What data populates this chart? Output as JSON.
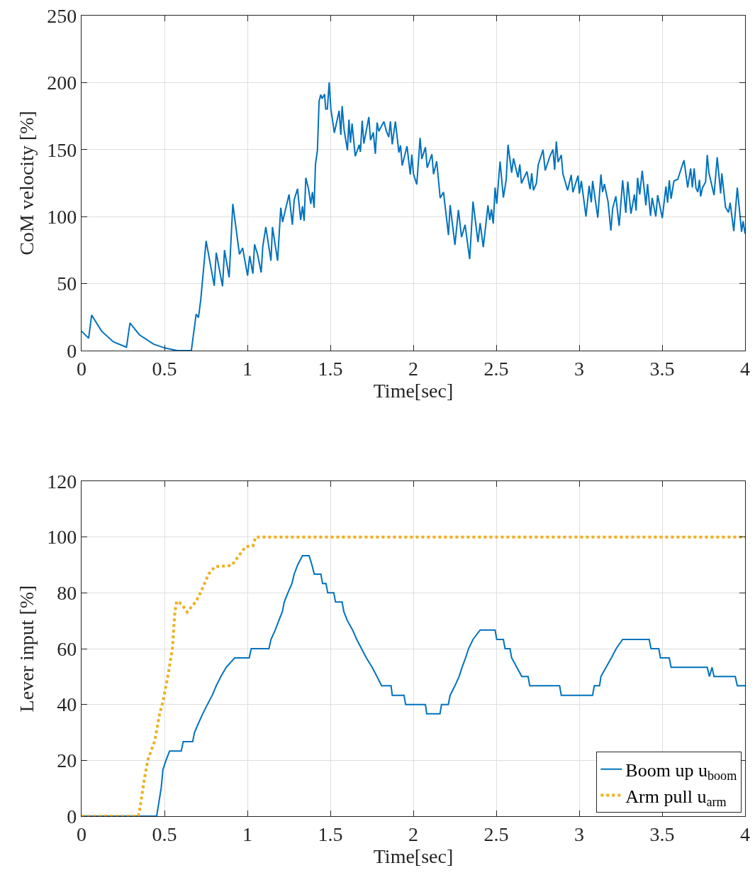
{
  "chart_data": [
    {
      "type": "line",
      "xlabel": "Time[sec]",
      "ylabel": "CoM velocity [%]",
      "xlim": [
        0,
        4
      ],
      "xticks": [
        0,
        0.5,
        1,
        1.5,
        2,
        2.5,
        3,
        3.5,
        4
      ],
      "ylim": [
        0,
        250
      ],
      "yticks": [
        0,
        50,
        100,
        150,
        200,
        250
      ],
      "grid": true,
      "legend": false,
      "series": [
        {
          "color": "#0072bd",
          "line_style": "solid",
          "x": [
            0,
            0.043,
            0.061,
            0.121,
            0.192,
            0.271,
            0.292,
            0.349,
            0.434,
            0.506,
            0.577,
            0.662,
            0.691,
            0.705,
            0.719,
            0.751,
            0.8,
            0.812,
            0.85,
            0.862,
            0.89,
            0.912,
            0.952,
            0.971,
            1.001,
            1.014,
            1.033,
            1.043,
            1.061,
            1.083,
            1.093,
            1.111,
            1.142,
            1.151,
            1.182,
            1.201,
            1.212,
            1.232,
            1.251,
            1.271,
            1.282,
            1.302,
            1.321,
            1.332,
            1.342,
            1.352,
            1.368,
            1.382,
            1.392,
            1.402,
            1.41,
            1.422,
            1.432,
            1.442,
            1.45,
            1.465,
            1.472,
            1.482,
            1.493,
            1.503,
            1.524,
            1.553,
            1.563,
            1.571,
            1.583,
            1.603,
            1.612,
            1.621,
            1.631,
            1.65,
            1.674,
            1.681,
            1.692,
            1.702,
            1.732,
            1.742,
            1.759,
            1.771,
            1.782,
            1.792,
            1.823,
            1.838,
            1.852,
            1.862,
            1.873,
            1.892,
            1.913,
            1.923,
            1.933,
            1.962,
            1.982,
            1.991,
            2.001,
            2.021,
            2.041,
            2.051,
            2.073,
            2.084,
            2.112,
            2.122,
            2.141,
            2.162,
            2.182,
            2.212,
            2.222,
            2.251,
            2.272,
            2.291,
            2.312,
            2.34,
            2.36,
            2.39,
            2.403,
            2.422,
            2.45,
            2.461,
            2.471,
            2.482,
            2.493,
            2.503,
            2.523,
            2.543,
            2.56,
            2.571,
            2.593,
            2.604,
            2.631,
            2.642,
            2.652,
            2.685,
            2.704,
            2.714,
            2.724,
            2.742,
            2.753,
            2.782,
            2.795,
            2.825,
            2.842,
            2.852,
            2.862,
            2.873,
            2.892,
            2.902,
            2.93,
            2.952,
            2.962,
            2.993,
            3.001,
            3.013,
            3.041,
            3.06,
            3.073,
            3.081,
            3.112,
            3.131,
            3.141,
            3.152,
            3.174,
            3.191,
            3.202,
            3.221,
            3.241,
            3.262,
            3.281,
            3.293,
            3.312,
            3.333,
            3.343,
            3.352,
            3.365,
            3.38,
            3.402,
            3.412,
            3.43,
            3.44,
            3.462,
            3.473,
            3.501,
            3.523,
            3.533,
            3.543,
            3.554,
            3.571,
            3.594,
            3.621,
            3.632,
            3.654,
            3.672,
            3.682,
            3.693,
            3.704,
            3.715,
            3.725,
            3.732,
            3.744,
            3.762,
            3.772,
            3.782,
            3.813,
            3.832,
            3.853,
            3.86,
            3.882,
            3.9,
            3.91,
            3.932,
            3.953,
            3.979,
            3.988,
            4
          ],
          "values": [
            14.5,
            9.2,
            26.5,
            14.5,
            6.5,
            2.5,
            20.6,
            11.8,
            4.8,
            1.8,
            0,
            0,
            27.2,
            24.7,
            38.3,
            81.9,
            48.4,
            73.1,
            48,
            75,
            54.7,
            109.5,
            71.9,
            76.6,
            56,
            70.6,
            57.4,
            79.3,
            71.9,
            58.3,
            78,
            92.2,
            67.1,
            92.2,
            67.1,
            106.6,
            96,
            106.6,
            116.5,
            93.9,
            112.6,
            120.8,
            97.5,
            107.7,
            96.8,
            129,
            120.9,
            109.5,
            118.3,
            106.6,
            138.9,
            149.5,
            186.1,
            191,
            188,
            191.4,
            180.4,
            180.4,
            200.2,
            180.4,
            162.5,
            179,
            161,
            182.5,
            164.6,
            149.5,
            172.4,
            155.1,
            169.5,
            145.1,
            153.6,
            148.3,
            171.6,
            154.5,
            174.3,
            157.1,
            162.8,
            146.9,
            170.2,
            163.7,
            171,
            163.7,
            159.3,
            171.1,
            153.9,
            171,
            147.8,
            153.1,
            138.1,
            152.5,
            131.4,
            146.3,
            131.9,
            124,
            158.7,
            143,
            151.7,
            136.4,
            146.6,
            131.6,
            141.3,
            113.9,
            118.3,
            86.3,
            108.6,
            78.9,
            105,
            84.7,
            93.9,
            68.3,
            111.2,
            81,
            95.2,
            77.2,
            108.4,
            97.5,
            105.4,
            94.8,
            121.7,
            109.5,
            141.1,
            114.2,
            127.5,
            153.6,
            132.8,
            143.4,
            129.2,
            139,
            124.8,
            133.7,
            120.4,
            132.4,
            119.6,
            124.8,
            138.6,
            149.9,
            134.5,
            145.5,
            150.1,
            134.9,
            156.1,
            140.7,
            146,
            131.9,
            119.6,
            131.1,
            118.1,
            130.6,
            117.2,
            126.6,
            100.1,
            123,
            110.7,
            126.6,
            99.2,
            131.4,
            118.3,
            124.3,
            111.2,
            89.5,
            106.3,
            115.1,
            93.1,
            127.1,
            102.8,
            126.2,
            102.2,
            116.5,
            104.5,
            128.9,
            116.4,
            134.2,
            108.4,
            124.3,
            100.6,
            113.9,
            100.1,
            116,
            98.9,
            122.5,
            110.3,
            127.1,
            113.3,
            126.6,
            127.8,
            138.1,
            142,
            121.7,
            135.9,
            121.8,
            135.9,
            121.3,
            118.3,
            127.5,
            115.1,
            121.7,
            125.8,
            146,
            132.8,
            116,
            144.3,
            117.3,
            132.2,
            107.2,
            103.1,
            110.3,
            89.2,
            121.7,
            88.6,
            96.6,
            87.2
          ]
        }
      ]
    },
    {
      "type": "line",
      "xlabel": "Time[sec]",
      "ylabel": "Lever input [%]",
      "xlim": [
        0,
        4
      ],
      "xticks": [
        0,
        0.5,
        1,
        1.5,
        2,
        2.5,
        3,
        3.5,
        4
      ],
      "ylim": [
        0,
        120
      ],
      "yticks": [
        0,
        20,
        40,
        60,
        80,
        100,
        120
      ],
      "grid": true,
      "legend": "bottom right",
      "series": [
        {
          "name": "Boom up u$_{boom}$",
          "color": "#0072bd",
          "line_style": "solid",
          "x": [
            0,
            0.453,
            0.48,
            0.491,
            0.509,
            0.531,
            0.601,
            0.613,
            0.67,
            0.681,
            0.705,
            0.731,
            0.759,
            0.788,
            0.812,
            0.84,
            0.872,
            0.923,
            1.011,
            1.023,
            1.13,
            1.142,
            1.168,
            1.189,
            1.211,
            1.222,
            1.244,
            1.268,
            1.282,
            1.303,
            1.332,
            1.372,
            1.389,
            1.403,
            1.443,
            1.453,
            1.474,
            1.484,
            1.521,
            1.531,
            1.571,
            1.581,
            1.603,
            1.634,
            1.659,
            1.688,
            1.717,
            1.752,
            1.781,
            1.809,
            1.866,
            1.873,
            1.944,
            1.954,
            2.073,
            2.081,
            2.161,
            2.17,
            2.211,
            2.222,
            2.251,
            2.276,
            2.294,
            2.315,
            2.333,
            2.36,
            2.403,
            2.493,
            2.503,
            2.543,
            2.553,
            2.583,
            2.593,
            2.624,
            2.654,
            2.692,
            2.702,
            2.882,
            2.892,
            3.081,
            3.091,
            3.123,
            3.131,
            3.162,
            3.194,
            3.223,
            3.262,
            3.422,
            3.433,
            3.48,
            3.49,
            3.543,
            3.554,
            3.772,
            3.785,
            3.801,
            3.813,
            3.941,
            3.953,
            4
          ],
          "values": [
            0,
            0,
            10,
            16.7,
            20,
            23.3,
            23.3,
            26.7,
            26.7,
            30,
            33.3,
            36.7,
            40,
            43.3,
            46.7,
            50,
            53.3,
            56.7,
            56.7,
            60,
            60,
            63.3,
            66.7,
            70,
            73.3,
            76.7,
            80,
            83.3,
            86.7,
            90,
            93.3,
            93.3,
            90,
            86.7,
            86.7,
            83.3,
            83.3,
            80,
            80,
            76.7,
            76.7,
            73.3,
            70,
            66.7,
            63.3,
            60,
            56.7,
            53.3,
            50,
            46.7,
            46.7,
            43.3,
            43.3,
            40,
            40,
            36.7,
            36.7,
            40,
            40,
            43.3,
            46.7,
            50,
            53.3,
            56.7,
            60,
            63.3,
            66.7,
            66.7,
            63.3,
            63.3,
            60,
            60,
            56.7,
            53.3,
            50,
            50,
            46.7,
            46.7,
            43.3,
            43.3,
            46.7,
            46.7,
            50,
            53.3,
            56.7,
            60,
            63.3,
            63.3,
            60,
            60,
            56.7,
            56.7,
            53.3,
            53.3,
            50,
            53.3,
            50,
            50,
            46.7,
            46.7
          ]
        },
        {
          "name": "Arm pull u$_{arm}$",
          "color": "#edb120",
          "line_style": "dotted",
          "x": [
            0,
            0.342,
            0.352,
            0.377,
            0.399,
            0.442,
            0.47,
            0.491,
            0.52,
            0.548,
            0.563,
            0.574,
            0.605,
            0.637,
            0.691,
            0.719,
            0.766,
            0.805,
            0.905,
            0.947,
            0.99,
            1.033,
            1.05,
            4
          ],
          "values": [
            0,
            0,
            2.8,
            12.6,
            20,
            27.1,
            36.4,
            41.1,
            50,
            60.2,
            73.3,
            77,
            75.9,
            73.1,
            77,
            80.3,
            86.7,
            89.4,
            89.8,
            93.2,
            96.6,
            96.8,
            100,
            100
          ]
        }
      ]
    }
  ]
}
